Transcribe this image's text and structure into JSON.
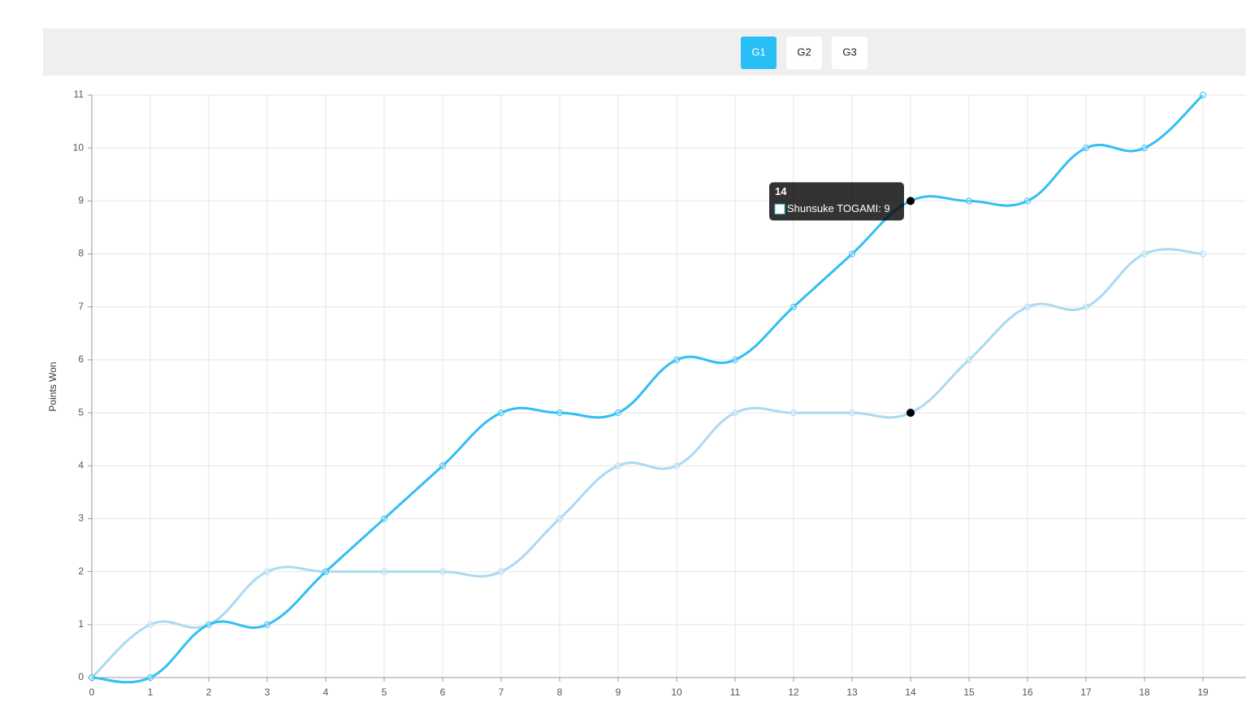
{
  "tabs": {
    "items": [
      "G1",
      "G2",
      "G3"
    ],
    "active": 0
  },
  "chart_data": {
    "type": "line",
    "y_label": "Points Won",
    "x": [
      0,
      1,
      2,
      3,
      4,
      5,
      6,
      7,
      8,
      9,
      10,
      11,
      12,
      13,
      14,
      15,
      16,
      17,
      18,
      19
    ],
    "series": [
      {
        "name": "Shunsuke TOGAMI",
        "color": "#33bff2",
        "values": [
          0,
          0,
          1,
          1,
          2,
          3,
          4,
          5,
          5,
          5,
          6,
          6,
          7,
          8,
          9,
          9,
          9,
          10,
          10,
          11
        ]
      },
      {
        "color": "#acd9f2",
        "values": [
          0,
          1,
          1,
          2,
          2,
          2,
          2,
          2,
          3,
          4,
          4,
          5,
          5,
          5,
          5,
          6,
          7,
          7,
          8,
          8
        ]
      }
    ],
    "xlim": [
      0,
      19
    ],
    "xticks": [
      0,
      1,
      2,
      3,
      4,
      5,
      6,
      7,
      8,
      9,
      10,
      11,
      12,
      13,
      14,
      15,
      16,
      17,
      18,
      19
    ],
    "ylim": [
      0,
      11
    ],
    "yticks": [
      0,
      1,
      2,
      3,
      4,
      5,
      6,
      7,
      8,
      9,
      10,
      11
    ],
    "grid": true,
    "tooltip": {
      "title": "14",
      "label": "Shunsuke TOGAMI: 9"
    }
  }
}
